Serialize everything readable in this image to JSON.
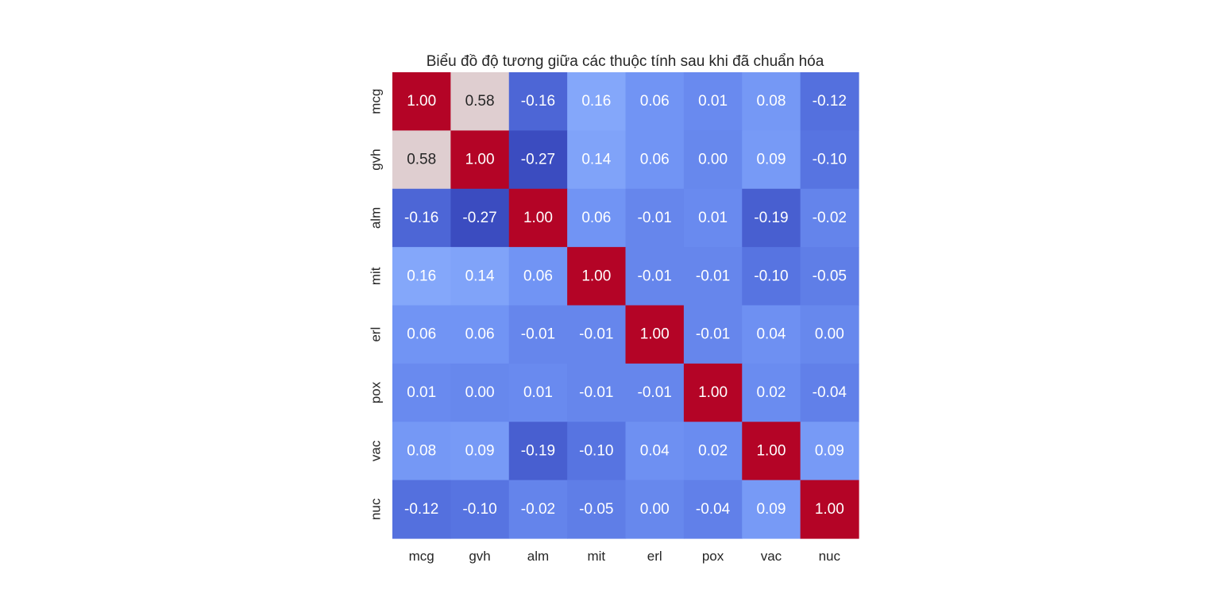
{
  "chart_data": {
    "type": "heatmap",
    "title": "Biểu đồ độ tương giữa các thuộc tính sau khi đã chuẩn hóa",
    "x_labels": [
      "mcg",
      "gvh",
      "alm",
      "mit",
      "erl",
      "pox",
      "vac",
      "nuc"
    ],
    "y_labels": [
      "mcg",
      "gvh",
      "alm",
      "mit",
      "erl",
      "pox",
      "vac",
      "nuc"
    ],
    "values": [
      [
        1.0,
        0.58,
        -0.16,
        0.16,
        0.06,
        0.01,
        0.08,
        -0.12
      ],
      [
        0.58,
        1.0,
        -0.27,
        0.14,
        0.06,
        0.0,
        0.09,
        -0.1
      ],
      [
        -0.16,
        -0.27,
        1.0,
        0.06,
        -0.01,
        0.01,
        -0.19,
        -0.02
      ],
      [
        0.16,
        0.14,
        0.06,
        1.0,
        -0.01,
        -0.01,
        -0.1,
        -0.05
      ],
      [
        0.06,
        0.06,
        -0.01,
        -0.01,
        1.0,
        -0.01,
        0.04,
        0.0
      ],
      [
        0.01,
        0.0,
        0.01,
        -0.01,
        -0.01,
        1.0,
        0.02,
        -0.04
      ],
      [
        0.08,
        0.09,
        -0.19,
        -0.1,
        0.04,
        0.02,
        1.0,
        0.09
      ],
      [
        -0.12,
        -0.1,
        -0.02,
        -0.05,
        0.0,
        -0.04,
        0.09,
        1.0
      ]
    ],
    "value_format": "2 decimals",
    "annotations": true,
    "colormap": "coolwarm",
    "vmin": -0.27,
    "vmax": 1.0,
    "colorbar": false,
    "grid": false,
    "colors": {
      "text_dark": "#262626",
      "text_light": "#ffffff"
    }
  }
}
